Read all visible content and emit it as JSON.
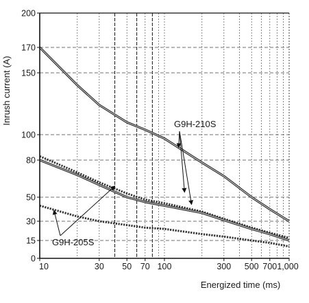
{
  "chart_data": {
    "type": "line",
    "title": "",
    "xlabel": "Energized time (ms)",
    "ylabel": "Inrush current (A)",
    "x_scale": "log",
    "xlim": [
      10,
      1000
    ],
    "ylim": [
      0,
      200
    ],
    "x_ticks": [
      {
        "value": 10,
        "label": "10"
      },
      {
        "value": 30,
        "label": "30"
      },
      {
        "value": 50,
        "label": "50"
      },
      {
        "value": 70,
        "label": "70"
      },
      {
        "value": 100,
        "label": "100"
      },
      {
        "value": 300,
        "label": "300"
      },
      {
        "value": 500,
        "label": "500"
      },
      {
        "value": 700,
        "label": "700"
      },
      {
        "value": 1000,
        "label": "1,000"
      }
    ],
    "x_gridlines": [
      20,
      30,
      40,
      50,
      60,
      70,
      80,
      90,
      100,
      200,
      300,
      400,
      500,
      600,
      700,
      800,
      900
    ],
    "x_gridlines_dashed": [
      40,
      60,
      80
    ],
    "y_ticks": [
      {
        "value": 0,
        "label": "0"
      },
      {
        "value": 15,
        "label": "15"
      },
      {
        "value": 30,
        "label": "30"
      },
      {
        "value": 50,
        "label": "50"
      },
      {
        "value": 80,
        "label": "80"
      },
      {
        "value": 100,
        "label": "100"
      },
      {
        "value": 150,
        "label": "150"
      },
      {
        "value": 170,
        "label": "170"
      },
      {
        "value": 200,
        "label": "200"
      }
    ],
    "grid": true,
    "series": [
      {
        "name": "",
        "group": "G9H-210S",
        "style": "solid",
        "x": [
          10,
          20,
          30,
          50,
          70,
          100,
          200,
          300,
          500,
          700,
          1000
        ],
        "y": [
          170,
          140,
          124,
          110,
          104,
          97,
          78,
          67,
          50,
          40,
          30
        ]
      },
      {
        "name": "",
        "group": "G9H-210S",
        "style": "dotted",
        "x": [
          10,
          20,
          30,
          50,
          70,
          100,
          200,
          300,
          500,
          700,
          1000
        ],
        "y": [
          83,
          70,
          62,
          53,
          48,
          45,
          38,
          32,
          25,
          21,
          17
        ]
      },
      {
        "name": "",
        "group": "G9H-205S",
        "style": "solid",
        "x": [
          10,
          20,
          30,
          50,
          70,
          100,
          200,
          300,
          500,
          700,
          1000
        ],
        "y": [
          80,
          68,
          60,
          50,
          46,
          43,
          37,
          31,
          24,
          20,
          15
        ]
      },
      {
        "name": "",
        "group": "G9H-205S",
        "style": "dotted",
        "x": [
          10,
          20,
          30,
          50,
          70,
          100,
          200,
          300,
          500,
          700,
          1000
        ],
        "y": [
          43,
          34,
          30,
          27,
          25,
          24,
          20,
          18,
          15,
          13,
          10
        ]
      }
    ],
    "annotations": [
      {
        "text": "G9H-210S",
        "arrows_to": [
          {
            "x": 130,
            "y": 90
          },
          {
            "x": 145,
            "y": 54
          },
          {
            "x": 165,
            "y": 44
          }
        ]
      },
      {
        "text": "G9H-205S",
        "arrows_to": [
          {
            "x": 40,
            "y": 59
          },
          {
            "x": 13,
            "y": 39
          }
        ]
      }
    ]
  }
}
